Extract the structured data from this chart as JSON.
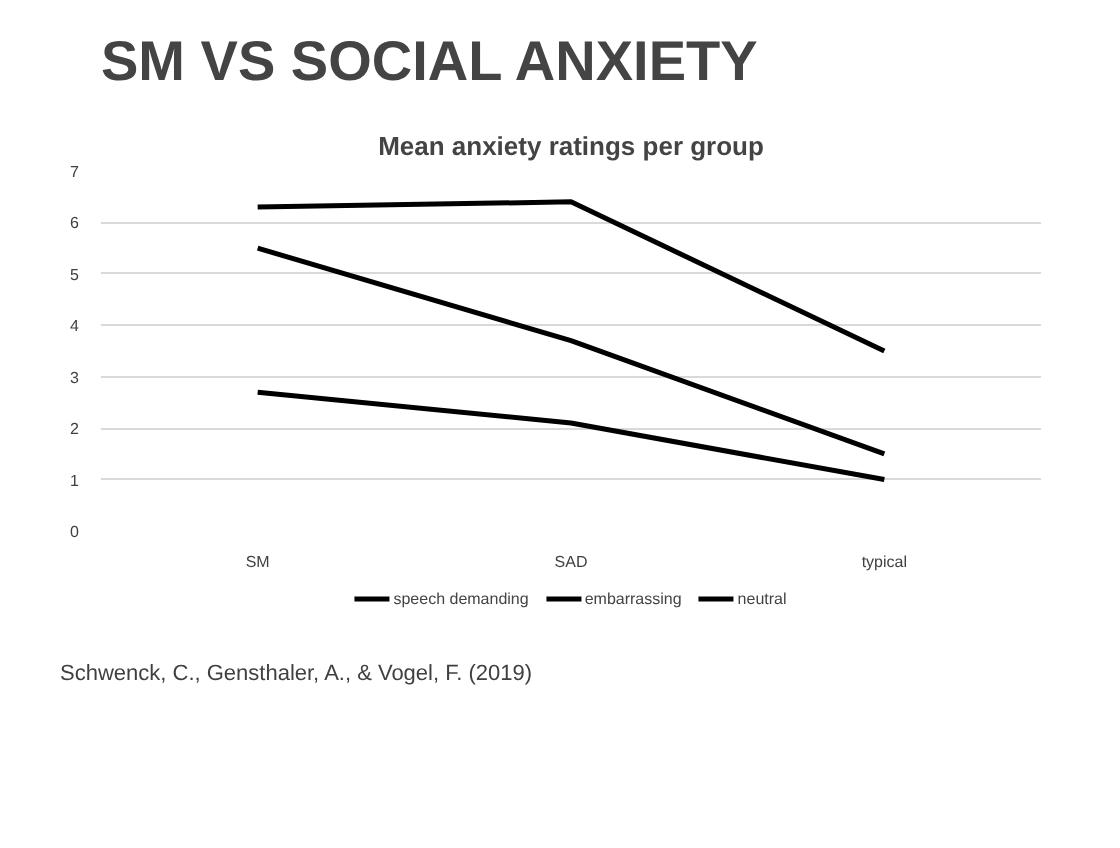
{
  "chart_data": {
    "type": "line",
    "title": "SM VS SOCIAL ANXIETY",
    "subtitle": "Mean anxiety ratings per group",
    "categories": [
      "SM",
      "SAD",
      "typical"
    ],
    "series": [
      {
        "name": "speech demanding",
        "color": "#000000",
        "values": [
          6.3,
          6.4,
          3.5
        ]
      },
      {
        "name": "embarrassing",
        "color": "#000000",
        "values": [
          5.5,
          3.7,
          1.5
        ]
      },
      {
        "name": "neutral",
        "color": "#000000",
        "values": [
          2.7,
          2.1,
          1.0
        ]
      }
    ],
    "ylim": [
      0,
      7
    ],
    "yticks": [
      0,
      1,
      2,
      3,
      4,
      5,
      6,
      7
    ],
    "grid": "y",
    "legend": "bottom",
    "marker": "none",
    "line_style": "solid",
    "annotations": [
      "Schwenck, C., Gensthaler, A., & Vogel, F. (2019)"
    ]
  }
}
